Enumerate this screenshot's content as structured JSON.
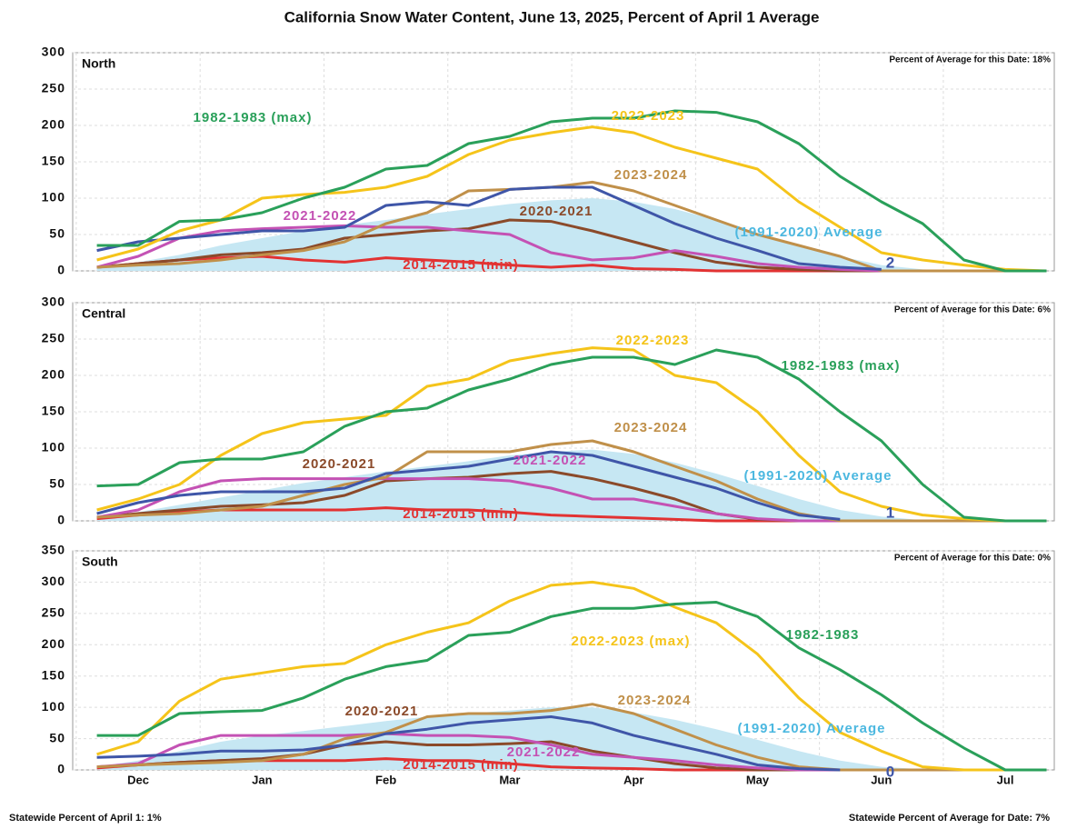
{
  "title": "California Snow Water Content, June 13, 2025, Percent of April 1 Average",
  "footer": [
    "Statewide Percent of April 1: 1%",
    "Statewide Percent of Average for Date: 7%"
  ],
  "chart_data": [
    {
      "type": "line",
      "title": "North",
      "note": "Percent of Average for this Date: 18%",
      "ylim": [
        0,
        300
      ],
      "yticks": [
        0,
        50,
        100,
        150,
        200,
        250,
        300
      ],
      "grid": true,
      "series": [
        {
          "name": "(1991-2020) Average",
          "area": true,
          "color": "#c6e7f3",
          "label_color": "#4cb8e0",
          "values": [
            5,
            12,
            22,
            35,
            45,
            55,
            63,
            70,
            78,
            85,
            92,
            97,
            100,
            95,
            85,
            70,
            52,
            35,
            20,
            8,
            2,
            0,
            0,
            0
          ]
        },
        {
          "name": "2014-2015 (min)",
          "color": "#e23232",
          "values": [
            5,
            10,
            15,
            18,
            20,
            15,
            12,
            18,
            15,
            12,
            8,
            5,
            8,
            3,
            2,
            0,
            0,
            0,
            0,
            0,
            0,
            0,
            0,
            0
          ]
        },
        {
          "name": "2020-2021",
          "color": "#8b4a2a",
          "values": [
            5,
            10,
            15,
            22,
            25,
            30,
            45,
            50,
            55,
            58,
            70,
            68,
            55,
            40,
            25,
            12,
            5,
            2,
            0,
            0,
            0,
            0,
            0,
            0
          ]
        },
        {
          "name": "2021-2022",
          "color": "#c452b4",
          "values": [
            5,
            20,
            45,
            55,
            58,
            60,
            62,
            60,
            60,
            55,
            50,
            25,
            15,
            18,
            28,
            20,
            10,
            5,
            2,
            0,
            0,
            0,
            0,
            0
          ]
        },
        {
          "name": "2023-2024",
          "color": "#c0904a",
          "values": [
            5,
            8,
            10,
            15,
            22,
            28,
            40,
            65,
            80,
            110,
            112,
            115,
            122,
            110,
            90,
            70,
            50,
            35,
            20,
            0,
            0,
            0,
            0,
            0
          ]
        },
        {
          "label": "2",
          "color": "#3f56a8",
          "values": [
            28,
            40,
            45,
            50,
            55,
            55,
            60,
            90,
            95,
            90,
            112,
            115,
            115,
            90,
            65,
            45,
            28,
            10,
            5,
            2,
            null,
            null,
            null,
            null
          ]
        },
        {
          "name": "2022-2023",
          "color": "#f5c41a",
          "values": [
            15,
            30,
            55,
            70,
            100,
            105,
            108,
            115,
            130,
            160,
            180,
            190,
            198,
            190,
            170,
            155,
            140,
            95,
            60,
            25,
            15,
            8,
            2,
            0
          ]
        },
        {
          "name": "1982-1983 (max)",
          "color": "#2aa05a",
          "values": [
            35,
            35,
            68,
            70,
            80,
            100,
            115,
            140,
            145,
            175,
            185,
            205,
            210,
            210,
            220,
            218,
            205,
            175,
            130,
            95,
            65,
            15,
            0,
            0
          ]
        }
      ]
    },
    {
      "type": "line",
      "title": "Central",
      "note": "Percent of Average for this Date: 6%",
      "ylim": [
        0,
        300
      ],
      "yticks": [
        0,
        50,
        100,
        150,
        200,
        250,
        300
      ],
      "grid": true,
      "series": [
        {
          "name": "(1991-2020) Average",
          "area": true,
          "color": "#c6e7f3",
          "label_color": "#4cb8e0",
          "values": [
            5,
            12,
            22,
            32,
            42,
            52,
            60,
            68,
            75,
            82,
            90,
            95,
            98,
            92,
            80,
            65,
            48,
            30,
            15,
            6,
            1,
            0,
            0,
            0
          ]
        },
        {
          "name": "2014-2015 (min)",
          "color": "#e23232",
          "values": [
            3,
            8,
            12,
            15,
            15,
            15,
            15,
            18,
            15,
            15,
            12,
            8,
            6,
            4,
            2,
            0,
            0,
            0,
            0,
            0,
            0,
            0,
            0,
            0
          ]
        },
        {
          "name": "2020-2021",
          "color": "#8b4a2a",
          "values": [
            5,
            10,
            15,
            20,
            22,
            25,
            35,
            55,
            58,
            60,
            65,
            68,
            58,
            45,
            30,
            10,
            2,
            0,
            0,
            0,
            0,
            0,
            0,
            0
          ]
        },
        {
          "name": "2021-2022",
          "color": "#c452b4",
          "values": [
            5,
            15,
            40,
            55,
            58,
            58,
            58,
            58,
            58,
            58,
            55,
            45,
            30,
            30,
            20,
            10,
            3,
            0,
            0,
            0,
            0,
            0,
            0,
            0
          ]
        },
        {
          "name": "2023-2024",
          "color": "#c0904a",
          "values": [
            5,
            8,
            10,
            15,
            20,
            35,
            50,
            60,
            95,
            95,
            95,
            105,
            110,
            95,
            75,
            55,
            30,
            10,
            0,
            0,
            0,
            0,
            0,
            0
          ]
        },
        {
          "label": "1",
          "color": "#3f56a8",
          "values": [
            10,
            25,
            35,
            40,
            40,
            40,
            45,
            65,
            70,
            75,
            85,
            95,
            90,
            75,
            60,
            45,
            25,
            8,
            2,
            null,
            null,
            null,
            null,
            null
          ]
        },
        {
          "name": "2022-2023",
          "color": "#f5c41a",
          "values": [
            15,
            30,
            50,
            90,
            120,
            135,
            140,
            145,
            185,
            195,
            220,
            230,
            238,
            235,
            200,
            190,
            150,
            90,
            40,
            20,
            8,
            3,
            0,
            0
          ]
        },
        {
          "name": "1982-1983 (max)",
          "color": "#2aa05a",
          "values": [
            48,
            50,
            80,
            85,
            85,
            95,
            130,
            150,
            155,
            180,
            195,
            215,
            225,
            225,
            215,
            235,
            225,
            195,
            150,
            110,
            50,
            5,
            0,
            0
          ]
        }
      ]
    },
    {
      "type": "line",
      "title": "South",
      "note": "Percent of Average for this Date: 0%",
      "categories": [
        null,
        "Dec",
        null,
        null,
        "Jan",
        null,
        null,
        "Feb",
        null,
        null,
        "Mar",
        null,
        null,
        "Apr",
        null,
        null,
        "May",
        null,
        null,
        "Jun",
        null,
        null,
        "Jul",
        null
      ],
      "ylim": [
        0,
        350
      ],
      "yticks": [
        0,
        50,
        100,
        150,
        200,
        250,
        300,
        350
      ],
      "grid": true,
      "series": [
        {
          "name": "(1991-2020) Average",
          "area": true,
          "color": "#c6e7f3",
          "label_color": "#4cb8e0",
          "values": [
            5,
            15,
            30,
            45,
            55,
            62,
            70,
            78,
            85,
            90,
            95,
            100,
            100,
            92,
            80,
            65,
            48,
            30,
            15,
            5,
            1,
            0,
            0,
            0
          ]
        },
        {
          "name": "2014-2015 (min)",
          "color": "#e23232",
          "values": [
            3,
            8,
            12,
            15,
            15,
            15,
            15,
            18,
            15,
            15,
            10,
            5,
            3,
            2,
            0,
            0,
            0,
            0,
            0,
            0,
            0,
            0,
            0,
            0
          ]
        },
        {
          "name": "2020-2021",
          "color": "#8b4a2a",
          "values": [
            5,
            8,
            12,
            15,
            18,
            25,
            40,
            45,
            40,
            40,
            42,
            45,
            30,
            20,
            10,
            3,
            0,
            0,
            0,
            0,
            0,
            0,
            0,
            0
          ]
        },
        {
          "name": "2021-2022",
          "color": "#c452b4",
          "values": [
            5,
            10,
            40,
            55,
            55,
            55,
            55,
            58,
            55,
            55,
            52,
            40,
            25,
            20,
            15,
            8,
            3,
            0,
            0,
            0,
            0,
            0,
            0,
            0
          ]
        },
        {
          "name": "2023-2024",
          "color": "#c0904a",
          "values": [
            5,
            8,
            10,
            12,
            15,
            25,
            50,
            60,
            85,
            90,
            90,
            95,
            105,
            90,
            65,
            40,
            20,
            5,
            0,
            0,
            0,
            0,
            0,
            0
          ]
        },
        {
          "label": "0",
          "color": "#3f56a8",
          "values": [
            20,
            22,
            25,
            30,
            30,
            32,
            40,
            58,
            65,
            75,
            80,
            85,
            75,
            55,
            40,
            25,
            8,
            2,
            0,
            null,
            null,
            null,
            null,
            null
          ]
        },
        {
          "name": "2022-2023 (max)",
          "color": "#f5c41a",
          "values": [
            25,
            45,
            110,
            145,
            155,
            165,
            170,
            200,
            220,
            235,
            270,
            295,
            300,
            290,
            260,
            235,
            185,
            115,
            60,
            30,
            5,
            0,
            0,
            0
          ]
        },
        {
          "name": "1982-1983",
          "color": "#2aa05a",
          "values": [
            55,
            55,
            90,
            93,
            95,
            115,
            145,
            165,
            175,
            215,
            220,
            245,
            258,
            258,
            265,
            268,
            245,
            195,
            160,
            120,
            75,
            35,
            0,
            0
          ]
        }
      ]
    }
  ]
}
